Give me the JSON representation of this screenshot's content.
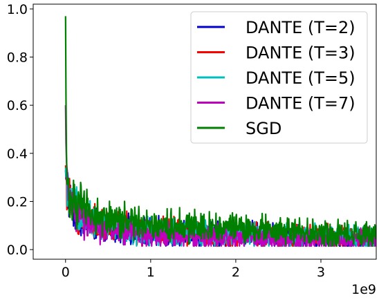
{
  "chart_data": {
    "type": "line",
    "title": "",
    "xlabel": "",
    "ylabel": "",
    "x_offset_label": "1e9",
    "xlim": [
      -0.38,
      3.65
    ],
    "ylim": [
      -0.04,
      1.02
    ],
    "x_ticks": [
      {
        "value": 0,
        "label": "0"
      },
      {
        "value": 1,
        "label": "1"
      },
      {
        "value": 2,
        "label": "2"
      },
      {
        "value": 3,
        "label": "3"
      }
    ],
    "y_ticks": [
      {
        "value": 0.0,
        "label": "0.0"
      },
      {
        "value": 0.2,
        "label": "0.2"
      },
      {
        "value": 0.4,
        "label": "0.4"
      },
      {
        "value": 0.6,
        "label": "0.6"
      },
      {
        "value": 0.8,
        "label": "0.8"
      },
      {
        "value": 1.0,
        "label": "1.0"
      }
    ],
    "grid": false,
    "legend_position": "top-right",
    "series": [
      {
        "name": "DANTE (T=2)",
        "color": "#0000cc",
        "x": [
          0,
          0.01,
          0.03,
          0.06,
          0.1,
          0.2,
          0.3,
          0.4,
          0.5,
          0.6,
          0.7,
          0.8,
          0.9,
          1.0,
          1.2,
          1.4,
          1.6,
          1.8,
          2.0,
          2.2,
          2.4,
          2.6,
          2.8,
          3.0,
          3.2,
          3.4,
          3.65
        ],
        "y": [
          0.33,
          0.26,
          0.21,
          0.19,
          0.16,
          0.13,
          0.11,
          0.1,
          0.09,
          0.09,
          0.08,
          0.08,
          0.08,
          0.07,
          0.07,
          0.07,
          0.06,
          0.06,
          0.06,
          0.06,
          0.05,
          0.05,
          0.05,
          0.05,
          0.05,
          0.04,
          0.04
        ]
      },
      {
        "name": "DANTE (T=3)",
        "color": "#ff0000",
        "x": [
          0,
          0.01,
          0.03,
          0.06,
          0.1,
          0.2,
          0.3,
          0.4,
          0.5,
          0.6,
          0.7,
          0.8,
          0.9,
          1.0,
          1.2,
          1.4,
          1.6,
          1.8,
          2.0,
          2.2,
          2.4,
          2.6,
          2.8,
          3.0,
          3.2,
          3.4,
          3.65
        ],
        "y": [
          0.35,
          0.27,
          0.22,
          0.19,
          0.16,
          0.13,
          0.12,
          0.1,
          0.1,
          0.09,
          0.09,
          0.08,
          0.08,
          0.08,
          0.07,
          0.07,
          0.07,
          0.06,
          0.06,
          0.06,
          0.06,
          0.05,
          0.05,
          0.05,
          0.05,
          0.05,
          0.04
        ]
      },
      {
        "name": "DANTE (T=5)",
        "color": "#00bfbf",
        "x": [
          0,
          0.01,
          0.03,
          0.06,
          0.1,
          0.2,
          0.3,
          0.4,
          0.5,
          0.6,
          0.7,
          0.8,
          0.9,
          1.0,
          1.2,
          1.4,
          1.6,
          1.8,
          2.0,
          2.2,
          2.4,
          2.6,
          2.8,
          3.0,
          3.2,
          3.4,
          3.65
        ],
        "y": [
          0.34,
          0.27,
          0.22,
          0.19,
          0.17,
          0.14,
          0.12,
          0.1,
          0.1,
          0.09,
          0.09,
          0.08,
          0.08,
          0.08,
          0.07,
          0.07,
          0.07,
          0.06,
          0.06,
          0.06,
          0.06,
          0.05,
          0.05,
          0.05,
          0.05,
          0.05,
          0.04
        ]
      },
      {
        "name": "DANTE (T=7)",
        "color": "#bf00bf",
        "x": [
          0,
          0.01,
          0.03,
          0.06,
          0.1,
          0.2,
          0.3,
          0.4,
          0.5,
          0.6,
          0.7,
          0.8,
          0.9,
          1.0,
          1.2,
          1.4,
          1.6,
          1.8,
          2.0,
          2.2,
          2.4,
          2.6,
          2.8,
          3.0,
          3.2,
          3.4,
          3.65
        ],
        "y": [
          0.6,
          0.3,
          0.23,
          0.19,
          0.16,
          0.12,
          0.1,
          0.09,
          0.08,
          0.07,
          0.07,
          0.07,
          0.06,
          0.06,
          0.06,
          0.05,
          0.05,
          0.05,
          0.05,
          0.05,
          0.04,
          0.04,
          0.04,
          0.04,
          0.04,
          0.04,
          0.04
        ]
      },
      {
        "name": "SGD",
        "color": "#008000",
        "x": [
          0,
          0.01,
          0.03,
          0.06,
          0.1,
          0.2,
          0.3,
          0.4,
          0.5,
          0.6,
          0.7,
          0.8,
          0.9,
          1.0,
          1.2,
          1.4,
          1.6,
          1.8,
          2.0,
          2.2,
          2.4,
          2.6,
          2.8,
          3.0,
          3.2,
          3.4,
          3.65
        ],
        "y": [
          0.97,
          0.33,
          0.26,
          0.22,
          0.2,
          0.17,
          0.15,
          0.13,
          0.13,
          0.12,
          0.12,
          0.11,
          0.11,
          0.11,
          0.1,
          0.1,
          0.1,
          0.09,
          0.09,
          0.08,
          0.08,
          0.08,
          0.07,
          0.07,
          0.07,
          0.06,
          0.06
        ]
      }
    ]
  }
}
